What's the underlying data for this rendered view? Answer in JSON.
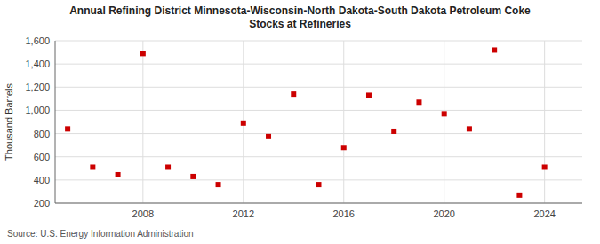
{
  "chart_data": {
    "type": "scatter",
    "title": "Annual Refining District Minnesota-Wisconsin-North Dakota-South Dakota Petroleum Coke\nStocks at Refineries",
    "y_label": "Thousand Barrels",
    "source": "Source: U.S. Energy Information Administration",
    "x": [
      2005,
      2006,
      2007,
      2008,
      2009,
      2010,
      2011,
      2012,
      2013,
      2014,
      2015,
      2016,
      2017,
      2018,
      2019,
      2020,
      2021,
      2022,
      2023,
      2024
    ],
    "values": [
      840,
      510,
      445,
      1490,
      510,
      430,
      360,
      890,
      775,
      1140,
      360,
      680,
      1130,
      820,
      1070,
      970,
      840,
      1520,
      270,
      510
    ],
    "color": "#cc0000",
    "marker": "square",
    "xlim": [
      2004.5,
      2025.5
    ],
    "xticks": [
      2008,
      2012,
      2016,
      2020,
      2024
    ],
    "ylim": [
      200,
      1600
    ],
    "yticks": [
      200,
      400,
      600,
      800,
      {
        "value": 1000,
        "label": "1,000"
      },
      {
        "value": 1200,
        "label": "1,200"
      },
      {
        "value": 1400,
        "label": "1,400"
      },
      {
        "value": 1600,
        "label": "1,600"
      }
    ],
    "grid": true
  }
}
